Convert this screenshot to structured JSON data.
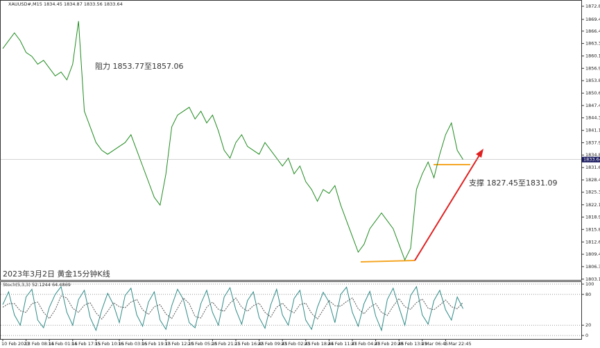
{
  "chart_data": [
    {
      "type": "line",
      "title": "XAUUSD#,M15 1834.45 1834.87 1833.56 1833.64",
      "annotations": [
        "阻力 1853.77至1857.06",
        "支撑 1827.45至1831.09",
        "2023年3月2日 黄金15分钟K线"
      ],
      "categories": [
        "10 Feb 2023",
        null,
        null,
        null,
        "13 Feb 08:15",
        null,
        null,
        null,
        "14 Feb 01:15",
        null,
        null,
        null,
        "14 Feb 17:15",
        null,
        null,
        null,
        "15 Feb 10:15",
        null,
        null,
        null,
        "16 Feb 03:15",
        null,
        null,
        null,
        "16 Feb 19:15",
        null,
        null,
        null,
        "17 Feb 12:15",
        null,
        null,
        null,
        "20 Feb 05:15",
        null,
        null,
        null,
        "20 Feb 21:15",
        null,
        null,
        null,
        "21 Feb 16:45",
        null,
        null,
        null,
        "22 Feb 09:45",
        null,
        null,
        null,
        "23 Feb 02:45",
        null,
        null,
        null,
        "23 Feb 18:45",
        null,
        null,
        null,
        "24 Feb 11:45",
        null,
        null,
        null,
        "27 Feb 04:45",
        null,
        null,
        null,
        "27 Feb 20:45",
        null,
        null,
        null,
        "28 Feb 13:45",
        null,
        null,
        null,
        "1 Mar 06:45",
        null,
        null,
        null,
        "1 Mar 22:45",
        null,
        null,
        null
      ],
      "series": [
        {
          "name": "XAUUSD#,M15",
          "color": "#1f8a1f",
          "values": [
            1862,
            1864,
            1866,
            1864,
            1861,
            1860,
            1858,
            1859,
            1857,
            1855,
            1856,
            1854,
            1858,
            1869,
            1846,
            1842,
            1838,
            1836,
            1835,
            1836,
            1837,
            1838,
            1840,
            1836,
            1832,
            1828,
            1824,
            1822,
            1830,
            1842,
            1845,
            1846,
            1847,
            1844,
            1846,
            1843,
            1845,
            1841,
            1836,
            1834,
            1838,
            1840,
            1837,
            1836,
            1835,
            1838,
            1836,
            1834,
            1832,
            1834,
            1830,
            1832,
            1828,
            1826,
            1823,
            1826,
            1825,
            1827,
            1822,
            1818,
            1814,
            1810,
            1812,
            1816,
            1818,
            1820,
            1818,
            1816,
            1812,
            1808,
            1811,
            1826,
            1830,
            1833,
            1829,
            1835,
            1840,
            1843,
            1836,
            1833.64
          ]
        }
      ],
      "ylim": [
        1802.9,
        1874.4
      ],
      "yticks": [
        {
          "value": 1872.8,
          "label": "1872.80"
        },
        {
          "value": 1869.45,
          "label": "1869.45"
        },
        {
          "value": 1866.45,
          "label": "1866.45"
        },
        {
          "value": 1863.3,
          "label": "1863.30"
        },
        {
          "value": 1860.1,
          "label": "1860.10"
        },
        {
          "value": 1856.95,
          "label": "1856.95"
        },
        {
          "value": 1853.8,
          "label": "1853.80"
        },
        {
          "value": 1850.6,
          "label": "1850.60"
        },
        {
          "value": 1847.45,
          "label": "1847.45"
        },
        {
          "value": 1844.3,
          "label": "1844.30"
        },
        {
          "value": 1841.1,
          "label": "1841.10"
        },
        {
          "value": 1837.95,
          "label": "1837.95"
        },
        {
          "value": 1834.8,
          "label": "1834.80"
        },
        {
          "value": 1831.6,
          "label": "1831.60"
        },
        {
          "value": 1828.45,
          "label": "1828.45"
        },
        {
          "value": 1825.3,
          "label": "1825.30"
        },
        {
          "value": 1822.1,
          "label": "1822.10"
        },
        {
          "value": 1818.95,
          "label": "1818.95"
        },
        {
          "value": 1815.8,
          "label": "1815.80"
        },
        {
          "value": 1812.6,
          "label": "1812.60"
        },
        {
          "value": 1809.45,
          "label": "1809.45"
        },
        {
          "value": 1806.3,
          "label": "1806.30"
        },
        {
          "value": 1803.1,
          "label": "1803.10"
        }
      ]
    },
    {
      "type": "line",
      "title": "Stoch(5,3,3) 52.1244 64.4869",
      "series": [
        {
          "color": "#2e8b87",
          "values": [
            60,
            85,
            40,
            20,
            75,
            90,
            30,
            15,
            55,
            80,
            95,
            45,
            20,
            70,
            88,
            35,
            10,
            50,
            82,
            60,
            25,
            78,
            92,
            40,
            18,
            65,
            85,
            30,
            12,
            58,
            90,
            70,
            25,
            15,
            62,
            88,
            45,
            20,
            75,
            93,
            50,
            22,
            68,
            85,
            35,
            14,
            60,
            90,
            40,
            20,
            72,
            88,
            30,
            12,
            55,
            84,
            65,
            25,
            80,
            94,
            45,
            18,
            62,
            86,
            38,
            10,
            70,
            92,
            55,
            20,
            78,
            95,
            40,
            22,
            68,
            88,
            50,
            30,
            75,
            52.1244
          ]
        },
        {
          "color": "#555555",
          "dashed": true,
          "values": [
            55,
            62,
            62,
            48,
            45,
            62,
            65,
            45,
            33,
            50,
            77,
            73,
            53,
            45,
            59,
            64,
            44,
            32,
            47,
            64,
            56,
            54,
            65,
            70,
            50,
            41,
            56,
            60,
            42,
            33,
            53,
            73,
            62,
            37,
            34,
            55,
            65,
            51,
            47,
            63,
            73,
            55,
            47,
            58,
            63,
            45,
            36,
            55,
            63,
            50,
            44,
            60,
            63,
            43,
            32,
            50,
            68,
            58,
            57,
            66,
            73,
            52,
            42,
            55,
            62,
            45,
            39,
            57,
            72,
            56,
            51,
            64,
            71,
            53,
            50,
            59,
            69,
            56,
            52,
            64.4869
          ]
        }
      ],
      "ylim": [
        0,
        100
      ],
      "yticks": [
        100,
        80,
        20,
        0
      ]
    }
  ]
}
